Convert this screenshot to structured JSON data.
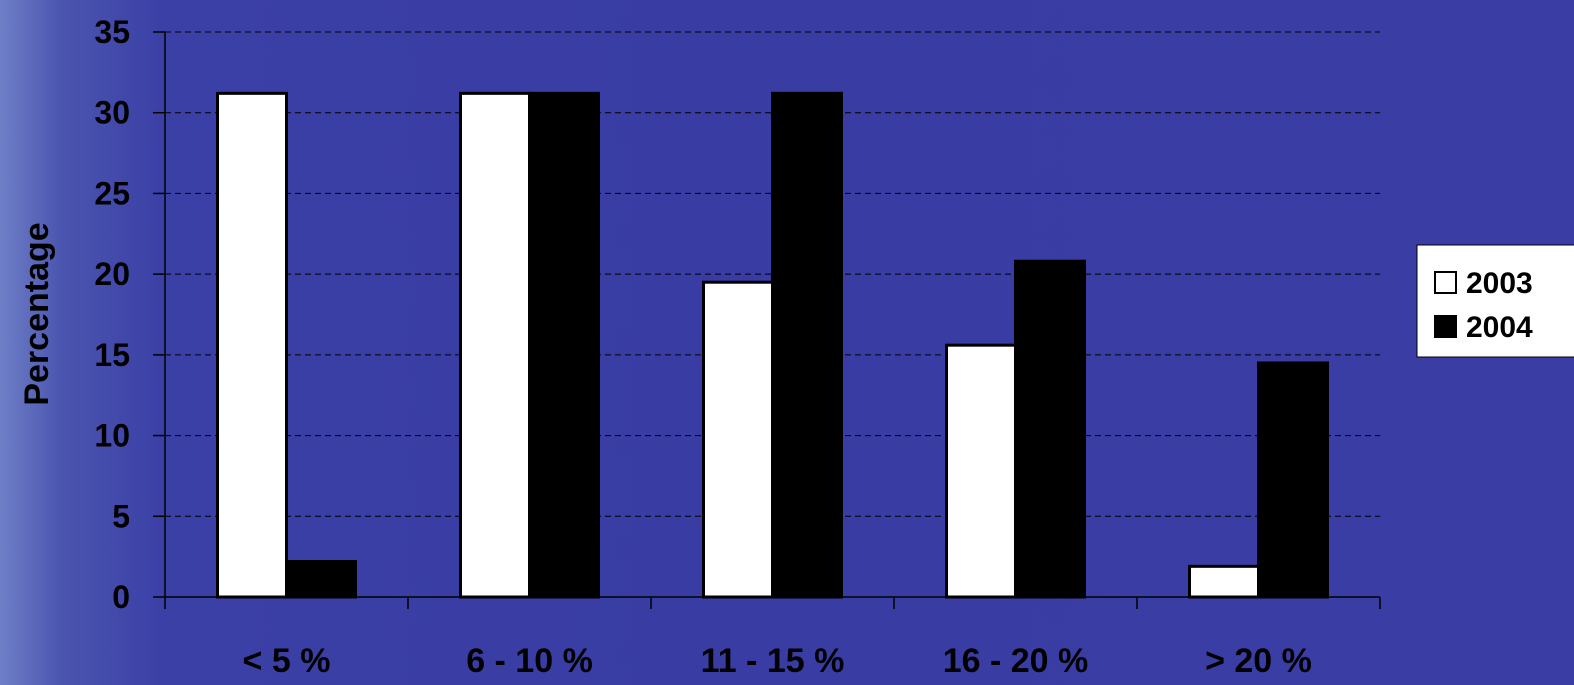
{
  "chart_data": {
    "type": "bar",
    "categories": [
      "< 5 %",
      "6 - 10 %",
      "11 - 15 %",
      "16 - 20 %",
      "> 20 %"
    ],
    "series": [
      {
        "name": "2003",
        "values": [
          31.2,
          31.2,
          19.5,
          15.6,
          1.9
        ]
      },
      {
        "name": "2004",
        "values": [
          2.2,
          31.2,
          31.2,
          20.8,
          14.5
        ]
      }
    ],
    "title": "",
    "xlabel": "",
    "ylabel": "Percentage",
    "ylim": [
      0,
      35
    ],
    "yticks": [
      "0",
      "5",
      "10",
      "15",
      "20",
      "25",
      "30",
      "35"
    ],
    "grid": true,
    "legend_position": "right",
    "colors": {
      "2003": "#ffffff",
      "2004": "#000000",
      "background": "#3a3ea4"
    }
  }
}
